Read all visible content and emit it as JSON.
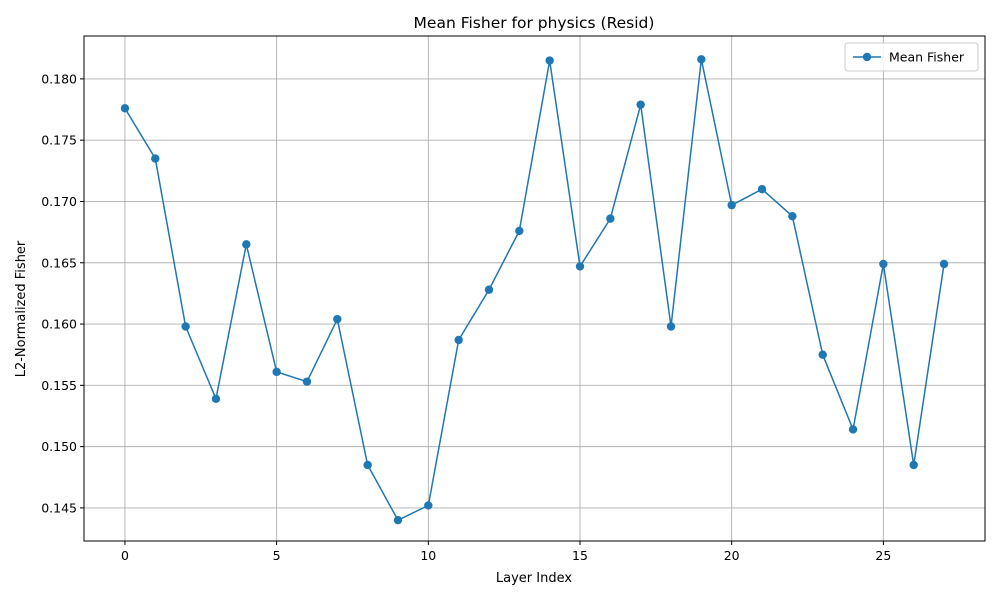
{
  "chart_data": {
    "type": "line",
    "title": "Mean Fisher for physics (Resid)",
    "xlabel": "Layer Index",
    "ylabel": "L2-Normalized Fisher",
    "xlim": [
      -1.35,
      28.35
    ],
    "ylim": [
      0.1423,
      0.1835
    ],
    "xticks": [
      0,
      5,
      10,
      15,
      20,
      25
    ],
    "yticks": [
      0.145,
      0.15,
      0.155,
      0.16,
      0.165,
      0.17,
      0.175,
      0.18
    ],
    "grid": true,
    "legend_position": "top-right",
    "series": [
      {
        "name": "Mean Fisher",
        "color": "#1f77b4",
        "marker": "circle",
        "x": [
          0,
          1,
          2,
          3,
          4,
          5,
          6,
          7,
          8,
          9,
          10,
          11,
          12,
          13,
          14,
          15,
          16,
          17,
          18,
          19,
          20,
          21,
          22,
          23,
          24,
          25,
          26,
          27
        ],
        "y": [
          0.1776,
          0.1735,
          0.1598,
          0.1539,
          0.1665,
          0.1561,
          0.1553,
          0.1604,
          0.1485,
          0.144,
          0.1452,
          0.1587,
          0.1628,
          0.1676,
          0.1815,
          0.1647,
          0.1686,
          0.1779,
          0.1598,
          0.1816,
          0.1697,
          0.171,
          0.1688,
          0.1575,
          0.1514,
          0.1649,
          0.1485,
          0.1649
        ]
      }
    ]
  }
}
